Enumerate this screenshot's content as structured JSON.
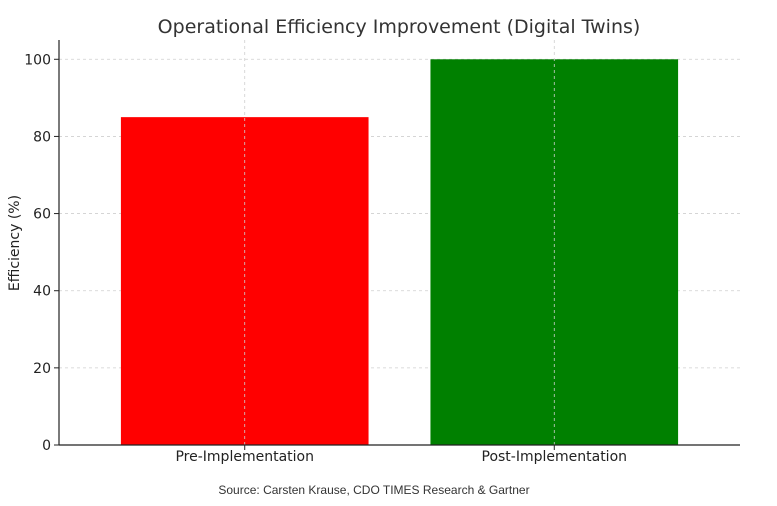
{
  "chart_data": {
    "type": "bar",
    "title": "Operational Efficiency Improvement (Digital Twins)",
    "categories": [
      "Pre-Implementation",
      "Post-Implementation"
    ],
    "values": [
      85,
      100
    ],
    "colors": [
      "#ff0000",
      "#008000"
    ],
    "xlabel": "",
    "ylabel": "Efficiency (%)",
    "ylim": [
      0,
      105
    ],
    "yticks": [
      0,
      20,
      40,
      60,
      80,
      100
    ],
    "grid": true
  },
  "source_note": "Source: Carsten Krause, CDO TIMES Research & Gartner"
}
